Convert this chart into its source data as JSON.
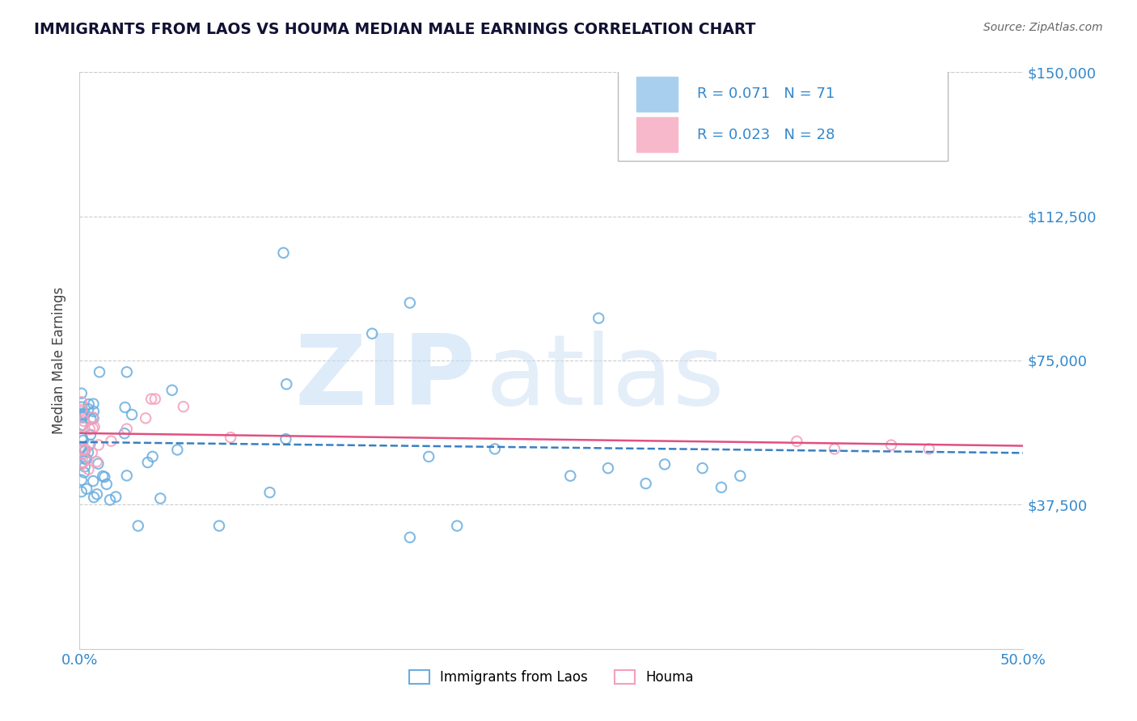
{
  "title": "IMMIGRANTS FROM LAOS VS HOUMA MEDIAN MALE EARNINGS CORRELATION CHART",
  "source": "Source: ZipAtlas.com",
  "ylabel": "Median Male Earnings",
  "xlim": [
    0.0,
    0.5
  ],
  "ylim": [
    0,
    150000
  ],
  "yticks": [
    0,
    37500,
    75000,
    112500,
    150000
  ],
  "ytick_labels_right": [
    "",
    "$37,500",
    "$75,000",
    "$112,500",
    "$150,000"
  ],
  "xtick_labels": [
    "0.0%",
    "50.0%"
  ],
  "R1": "0.071",
  "N1": "71",
  "R2": "0.023",
  "N2": "28",
  "scatter1_color": "#6aaee0",
  "scatter2_color": "#f4a0bb",
  "line1_color": "#3a7fc1",
  "line2_color": "#e05080",
  "line1_style": "--",
  "line2_style": "-",
  "watermark_zip": "ZIP",
  "watermark_atlas": "atlas",
  "watermark_color_zip": "#c8dff5",
  "watermark_color_atlas": "#c8dff5",
  "background_color": "#ffffff",
  "grid_color": "#cccccc",
  "title_color": "#111133",
  "axis_label_color": "#444444",
  "tick_color": "#3388cc",
  "legend_box_color1": "#a8d0ee",
  "legend_box_color2": "#f7b8cc",
  "legend_border_color": "#bbbbbb",
  "source_color": "#666666"
}
